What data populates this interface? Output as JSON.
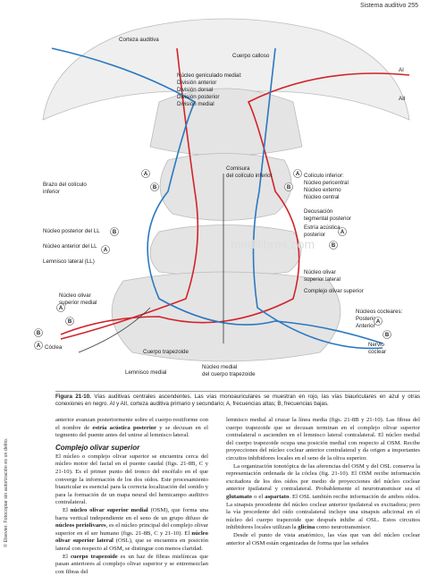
{
  "header": {
    "running_title": "Sistema auditivo 255"
  },
  "side_note": "© Elsevier. Fotocopiar sin autorización es un delito.",
  "figure": {
    "watermark": "medilibros.com",
    "labels": [
      {
        "lines": [
          "Corteza auditiva"
        ]
      },
      {
        "lines": [
          "AI"
        ]
      },
      {
        "lines": [
          "AII"
        ]
      },
      {
        "lines": [
          "Cuerpo calloso"
        ]
      },
      {
        "lines": [
          "Núcleo geniculado medial:",
          "División anterior",
          "División dorsal",
          "División posterior",
          "División medial"
        ]
      },
      {
        "lines": [
          "Comisura",
          "del colículo inferior"
        ]
      },
      {
        "lines": [
          "Colículo inferior:",
          "Núcleo pericentral",
          "Núcleo externo",
          "Núcleo central"
        ]
      },
      {
        "lines": [
          "Brazo del colículo",
          "inferior"
        ]
      },
      {
        "lines": [
          "Decusación",
          "tegmental posterior"
        ]
      },
      {
        "lines": [
          "Estría acústica",
          "posterior"
        ]
      },
      {
        "lines": [
          "Núcleo posterior del LL"
        ]
      },
      {
        "lines": [
          "Núcleo anterior del LL"
        ]
      },
      {
        "lines": [
          "Lemnisco lateral (LL)"
        ]
      },
      {
        "lines": [
          "Núcleo olivar",
          "superior lateral"
        ]
      },
      {
        "lines": [
          "Complejo olivar superior"
        ]
      },
      {
        "lines": [
          "Núcleo olivar",
          "superior medial"
        ]
      },
      {
        "lines": [
          "Núcleos cocleares:",
          "Posterior",
          "Anterior"
        ]
      },
      {
        "lines": [
          "Cóclea"
        ]
      },
      {
        "lines": [
          "Nervio",
          "coclear"
        ]
      },
      {
        "lines": [
          "Cuerpo trapezoide"
        ]
      },
      {
        "lines": [
          "Lemnisco medial"
        ]
      },
      {
        "lines": [
          "Núcleo medial",
          "del cuerpo trapezoide"
        ]
      }
    ],
    "markers": [
      "A",
      "B",
      "A",
      "B",
      "B",
      "A",
      "B",
      "A",
      "A",
      "B",
      "B",
      "A",
      "A",
      "B"
    ],
    "caption": [
      {
        "t": "Figura 21-10.",
        "b": true
      },
      {
        "t": " Vías auditivas centrales ascendentes. Las vías monoauriculares se muestran en rojo, las vías biauriculares en azul y otras conexiones en negro. AI y AII, corteza auditiva primario y secundario; A, frecuencias altas; B, frecuencias bajas."
      }
    ]
  },
  "body": {
    "columns": [
      [
        {
          "runs": [
            {
              "t": "anterior avanzan posteriormente sobre el cuerpo restiforme con el nombre de "
            },
            {
              "t": "estría acústica posterior",
              "b": true
            },
            {
              "t": " y se decusan en el tegmento del puente antes del unirse al lemnisco lateral."
            }
          ]
        },
        {
          "heading": "Complejo olivar superior"
        },
        {
          "runs": [
            {
              "t": "El núcleo o complejo olivar superior se encuentra cerca del núcleo motor del facial en el puente caudal (figs. 21-8B, C y 21-10). Es el primer punto del tronco del encéfalo en el que converge la información de los dos oídos. Este procesamiento biauricular es esencial para la correcta localización del sonido y para la formación de un mapa neural del hemicampo auditivo contralateral."
            }
          ]
        },
        {
          "indent": true,
          "runs": [
            {
              "t": "El "
            },
            {
              "t": "núcleo olivar superior medial",
              "b": true
            },
            {
              "t": " (OSM), que forma una barra vertical independiente en el seno de un grupo difuso de "
            },
            {
              "t": "núcleos periolivares",
              "b": true
            },
            {
              "t": ", es el núcleo principal del complejo olivar superior en el ser humano (figs. 21-8B, C y 21-10). El "
            },
            {
              "t": "núcleo olivar superior lateral",
              "b": true
            },
            {
              "t": " (OSL), que se encuentra en posición lateral con respecto al OSM, se distingue con menos claridad."
            }
          ]
        },
        {
          "indent": true,
          "runs": [
            {
              "t": "El "
            },
            {
              "t": "cuerpo trapezoide",
              "b": true
            },
            {
              "t": " es un haz de fibras mielínicas que pasan anteriores al complejo olivar superior y se entremezclan con fibras del"
            }
          ]
        }
      ],
      [
        {
          "runs": [
            {
              "t": "lemnisco medial al cruzar la línea media (figs. 21-8B y 21-10). Las fibras del cuerpo trapezoide que se decusan terminan en el complejo olivar superior contralateral o ascienden en el lemnisco lateral contralateral. El núcleo medial del cuerpo trapezoide ocupa una posición medial con respecto al OSM. Recibe proyecciones del núcleo coclear anterior contralateral y da origen a importantes circuitos inhibidores locales en el seno de la oliva superior."
            }
          ]
        },
        {
          "indent": true,
          "runs": [
            {
              "t": "La organización tonotópica de las aferencias del OSM y del OSL conserva la representación ordenada de la cóclea (fig. 21-10). El OSM recibe información excitadora de los dos oídos por medio de proyecciones del núcleo coclear anterior ipsilateral y contralateral. Probablemente el neurotransmisor sea el "
            },
            {
              "t": "glutamato",
              "b": true
            },
            {
              "t": " o el "
            },
            {
              "t": "aspartato",
              "b": true
            },
            {
              "t": ". El OSL también recibe información de ambos oídos. La sinapsis procedente del núcleo coclear anterior ipsilateral es excitadora; pero la vía procedente del oído contralateral incluye una sinapsis adicional en el núcleo del cuerpo trapezoide que después inhibe al OSL. Estos circuitos inhibidores locales utilizan la "
            },
            {
              "t": "glicina",
              "b": true
            },
            {
              "t": " como neurotransmisor."
            }
          ]
        },
        {
          "indent": true,
          "runs": [
            {
              "t": "Desde el punto de vista anatómico, las vías que van del núcleo coclear anterior al OSM están organizadas de forma que las señales"
            }
          ]
        }
      ]
    ]
  }
}
